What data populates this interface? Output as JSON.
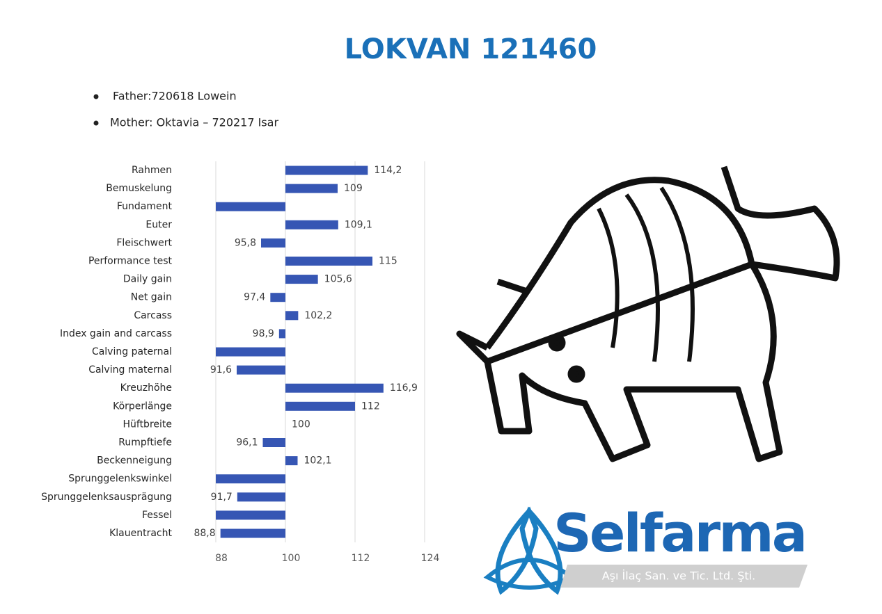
{
  "title": "LOKVAN 121460",
  "bullets": [
    "Father:720618 Lowein",
    "Mother: Oktavia – 720217 Isar"
  ],
  "logo": {
    "name": "Selfarma",
    "tagline": "Aşı İlaç San. ve Tic. Ltd. Şti."
  },
  "chart_data": {
    "type": "bar",
    "orientation": "horizontal",
    "color": "#3656b4",
    "categories": [
      "Rahmen",
      "Bemuskelung",
      "Fundament",
      "Euter",
      "Fleischwert",
      "Performance test",
      "Daily gain",
      "Net gain",
      "Carcass",
      "Index gain and carcass",
      "Calving paternal",
      "Calving maternal",
      "Kreuzhöhe",
      "Körperlänge",
      "Hüftbreite",
      "Rumpftiefe",
      "Beckenneigung",
      "Sprunggelenkswinkel",
      "Sprunggelenksausprägung",
      "Fessel",
      "Klauentracht"
    ],
    "values": [
      114.2,
      109,
      88,
      109.1,
      95.8,
      115,
      105.6,
      97.4,
      102.2,
      98.9,
      88,
      91.6,
      116.9,
      112,
      100,
      96.1,
      102.1,
      88,
      91.7,
      88,
      88.8
    ],
    "value_labels": [
      "114,2",
      "109",
      null,
      "109,1",
      "95,8",
      "115",
      "105,6",
      "97,4",
      "102,2",
      "98,9",
      null,
      "91,6",
      "116,9",
      "112",
      "100",
      "96,1",
      "102,1",
      null,
      "91,7",
      null,
      "88,8"
    ],
    "bar_base": 100,
    "xlim": [
      88,
      124
    ],
    "xticks": [
      88,
      100,
      112,
      124
    ],
    "grid": true
  }
}
